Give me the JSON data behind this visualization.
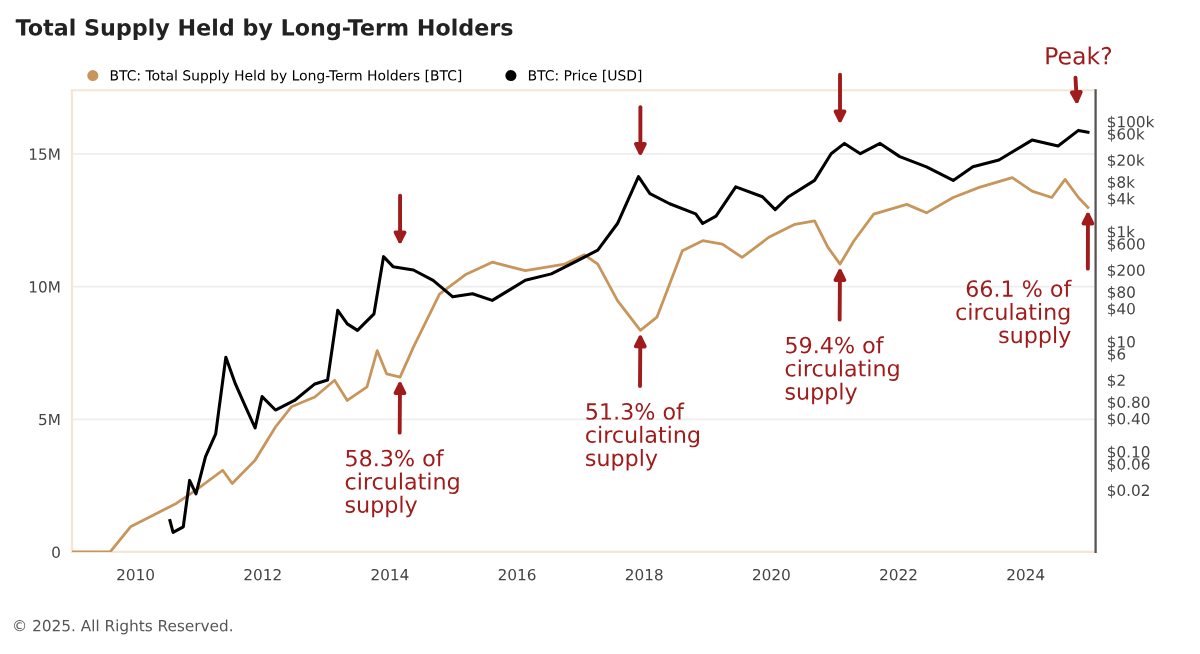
{
  "chart_data": {
    "type": "line",
    "title": "Total Supply Held by Long-Term Holders",
    "series": [
      {
        "name": "BTC: Total Supply Held by Long-Term Holders [BTC]",
        "color": "#c8955a",
        "axis": "y",
        "x": [
          2009.0,
          2009.6,
          2009.92,
          2010.23,
          2010.64,
          2010.95,
          2011.37,
          2011.52,
          2011.88,
          2012.2,
          2012.45,
          2012.82,
          2013.13,
          2013.33,
          2013.64,
          2013.8,
          2013.95,
          2014.16,
          2014.37,
          2014.78,
          2015.2,
          2015.61,
          2016.13,
          2016.75,
          2017.06,
          2017.27,
          2017.58,
          2017.94,
          2018.2,
          2018.6,
          2018.92,
          2019.23,
          2019.54,
          2019.96,
          2020.37,
          2020.68,
          2020.89,
          2021.08,
          2021.3,
          2021.61,
          2022.13,
          2022.44,
          2022.86,
          2023.27,
          2023.79,
          2024.1,
          2024.41,
          2024.62,
          2024.83,
          2024.98
        ],
        "values": [
          0,
          0,
          950000,
          1330000,
          1830000,
          2330000,
          3080000,
          2580000,
          3460000,
          4710000,
          5470000,
          5840000,
          6470000,
          5710000,
          6220000,
          7590000,
          6710000,
          6590000,
          7720000,
          9720000,
          10470000,
          10920000,
          10600000,
          10850000,
          11200000,
          10850000,
          9470000,
          8350000,
          8850000,
          11350000,
          11730000,
          11600000,
          11100000,
          11860000,
          12350000,
          12480000,
          11480000,
          10850000,
          11730000,
          12730000,
          13100000,
          12780000,
          13360000,
          13740000,
          14110000,
          13600000,
          13360000,
          14040000,
          13360000,
          12980000
        ]
      },
      {
        "name": "BTC: Price [USD]",
        "color": "#000000",
        "axis": "y2",
        "x": [
          2010.54,
          2010.59,
          2010.75,
          2010.85,
          2010.95,
          2011.1,
          2011.26,
          2011.42,
          2011.57,
          2011.73,
          2011.88,
          2011.99,
          2012.2,
          2012.5,
          2012.82,
          2013.02,
          2013.18,
          2013.33,
          2013.49,
          2013.75,
          2013.9,
          2014.05,
          2014.37,
          2014.68,
          2014.99,
          2015.3,
          2015.61,
          2016.13,
          2016.54,
          2016.96,
          2017.27,
          2017.58,
          2017.91,
          2018.09,
          2018.4,
          2018.81,
          2018.92,
          2019.13,
          2019.44,
          2019.86,
          2020.06,
          2020.27,
          2020.68,
          2020.94,
          2021.15,
          2021.4,
          2021.71,
          2022.02,
          2022.44,
          2022.86,
          2023.17,
          2023.58,
          2024.1,
          2024.51,
          2024.83,
          2024.98
        ],
        "values": [
          0.0056,
          0.0034,
          0.0043,
          0.03,
          0.017,
          0.081,
          0.21,
          5.2,
          1.7,
          0.65,
          0.27,
          1.0,
          0.57,
          0.85,
          1.7,
          2.0,
          37,
          21,
          16,
          32,
          350,
          230,
          200,
          130,
          65,
          74,
          56,
          130,
          170,
          300,
          460,
          1400,
          10000,
          4900,
          3200,
          2100,
          1400,
          1900,
          6500,
          4300,
          2500,
          4300,
          8500,
          26000,
          40000,
          26000,
          40000,
          23000,
          15000,
          8500,
          15000,
          20000,
          46000,
          36000,
          69000,
          64000
        ]
      }
    ],
    "xlim": [
      2009.0,
      2025.1
    ],
    "xticks": [
      2010,
      2012,
      2014,
      2016,
      2018,
      2020,
      2022,
      2024
    ],
    "ylim": [
      0,
      17400000
    ],
    "yticks": [
      {
        "value": 0,
        "label": "0"
      },
      {
        "value": 5000000,
        "label": "5M"
      },
      {
        "value": 10000000,
        "label": "10M"
      },
      {
        "value": 15000000,
        "label": "15M"
      }
    ],
    "y2lim": [
      0.0015,
      370000
    ],
    "y2ticks": [
      {
        "value": 100000,
        "label": "$100k"
      },
      {
        "value": 60000,
        "label": "$60k"
      },
      {
        "value": 20000,
        "label": "$20k"
      },
      {
        "value": 8000,
        "label": "$8k"
      },
      {
        "value": 4000,
        "label": "$4k"
      },
      {
        "value": 1000,
        "label": "$1k"
      },
      {
        "value": 600,
        "label": "$600"
      },
      {
        "value": 200,
        "label": "$200"
      },
      {
        "value": 80,
        "label": "$80"
      },
      {
        "value": 40,
        "label": "$40"
      },
      {
        "value": 10,
        "label": "$10"
      },
      {
        "value": 6,
        "label": "$6"
      },
      {
        "value": 2,
        "label": "$2"
      },
      {
        "value": 0.8,
        "label": "$0.80"
      },
      {
        "value": 0.4,
        "label": "$0.40"
      },
      {
        "value": 0.1,
        "label": "$0.10"
      },
      {
        "value": 0.06,
        "label": "$0.06"
      },
      {
        "value": 0.02,
        "label": "$0.02"
      }
    ],
    "log": "y2",
    "grid": "y",
    "legend": "top left",
    "annotations": [
      {
        "text": "58.3% of\ncirculating\nsupply",
        "x": 2014.16,
        "y": 6590000
      },
      {
        "text": "51.3% of\ncirculating\nsupply",
        "x": 2017.94,
        "y": 8350000
      },
      {
        "text": "59.4% of\ncirculating\nsupply",
        "x": 2021.08,
        "y": 10850000
      },
      {
        "text": "66.1 % of\ncirculating\nsupply",
        "x": 2024.98,
        "y": 12980000
      },
      "Peak?",
      "© 2025. All Rights Reserved."
    ]
  }
}
